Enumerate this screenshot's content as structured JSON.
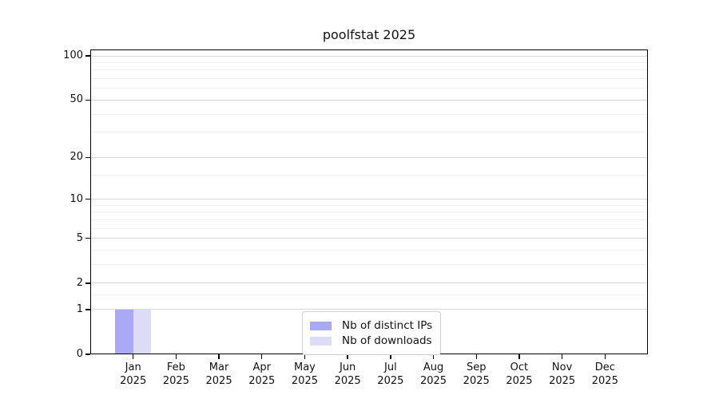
{
  "chart_data": {
    "type": "bar",
    "title": "poolfstat 2025",
    "categories": [
      "Jan",
      "Feb",
      "Mar",
      "Apr",
      "May",
      "Jun",
      "Jul",
      "Aug",
      "Sep",
      "Oct",
      "Nov",
      "Dec"
    ],
    "category_year": "2025",
    "series": [
      {
        "name": "Nb of distinct IPs",
        "color": "#a9a9f4",
        "values": [
          1,
          0,
          0,
          0,
          0,
          0,
          0,
          0,
          0,
          0,
          0,
          0
        ]
      },
      {
        "name": "Nb of downloads",
        "color": "#dcdcf9",
        "values": [
          1,
          0,
          0,
          0,
          0,
          0,
          0,
          0,
          0,
          0,
          0,
          0
        ]
      }
    ],
    "xlabel": "",
    "ylabel": "",
    "yscale": "log1p",
    "ylim": [
      0,
      110
    ],
    "yticks": [
      0,
      1,
      2,
      5,
      10,
      20,
      50,
      100
    ],
    "yticks_minor": [
      1.5,
      3,
      4,
      6,
      7,
      8,
      9,
      15,
      30,
      40,
      60,
      70,
      80,
      90
    ],
    "grid": true,
    "legend": {
      "position": "lower center"
    }
  }
}
